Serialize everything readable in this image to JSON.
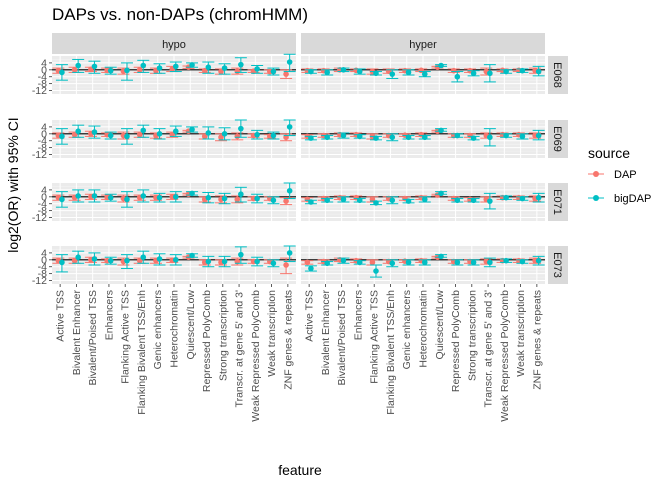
{
  "chart_data": {
    "type": "scatter",
    "title": "DAPs vs. non-DAPs (chromHMM)",
    "xlabel": "feature",
    "ylabel": "log2(OR) with 95% CI",
    "ylim": [
      -14,
      8
    ],
    "yticks": [
      4,
      0,
      -4,
      -8,
      -12
    ],
    "grid": true,
    "legend_position": "right",
    "legend_title": "source",
    "series": [
      {
        "name": "DAP",
        "color": "#F8766D"
      },
      {
        "name": "bigDAP",
        "color": "#00BFC4"
      }
    ],
    "columns": [
      "hypo",
      "hyper"
    ],
    "rows": [
      "E068",
      "E069",
      "E071",
      "E073"
    ],
    "features": [
      "Active TSS",
      "Bivalent Enhancer",
      "Bivalent/Poised TSS",
      "Enhancers",
      "Flanking Active TSS",
      "Flanking Bivalent TSS/Enh",
      "Genic enhancers",
      "Heterochromatin",
      "Quiescent/Low",
      "Repressed PolyComb",
      "Strong transcription",
      "Transcr. at gene 5' and 3'",
      "Weak Repressed PolyComb",
      "Weak transcription",
      "ZNF genes & repeats"
    ],
    "panels": [
      {
        "row": "E068",
        "col": "hypo",
        "DAP": [
          [
            -0.5,
            -2,
            1
          ],
          [
            0,
            -1.5,
            1.5
          ],
          [
            0.3,
            -1,
            1.5
          ],
          [
            -0.3,
            -1.5,
            1
          ],
          [
            -0.8,
            -2.5,
            1
          ],
          [
            0,
            -1.5,
            1.5
          ],
          [
            -0.5,
            -2,
            1
          ],
          [
            0.5,
            -1,
            2
          ],
          [
            1.5,
            0.8,
            2.2
          ],
          [
            -0.5,
            -1.5,
            0.5
          ],
          [
            -1,
            -2.5,
            0.5
          ],
          [
            -0.8,
            -2.5,
            1
          ],
          [
            -0.8,
            -1.5,
            0
          ],
          [
            -1,
            -2,
            0
          ],
          [
            -2.5,
            -5,
            0
          ]
        ],
        "bigDAP": [
          [
            -1.5,
            -6,
            3
          ],
          [
            2.5,
            -1.5,
            6
          ],
          [
            2,
            -2,
            5
          ],
          [
            -0.5,
            -2.5,
            1.5
          ],
          [
            -0.3,
            -6,
            4
          ],
          [
            2.5,
            -1.5,
            5.5
          ],
          [
            1,
            -2,
            3.5
          ],
          [
            2,
            -1,
            4.5
          ],
          [
            2.8,
            1.5,
            4
          ],
          [
            1.5,
            -2,
            4.5
          ],
          [
            1,
            -2.5,
            3.5
          ],
          [
            3,
            -1.5,
            7
          ],
          [
            0.5,
            -2,
            2.5
          ],
          [
            -1,
            -3,
            1
          ],
          [
            4.5,
            -1,
            9
          ]
        ]
      },
      {
        "row": "E068",
        "col": "hyper",
        "DAP": [
          [
            -0.5,
            -1.5,
            0.5
          ],
          [
            -0.5,
            -1.5,
            0.5
          ],
          [
            0,
            -1,
            1
          ],
          [
            -0.3,
            -1,
            0.5
          ],
          [
            -1,
            -2.5,
            0.5
          ],
          [
            -0.8,
            -2,
            0.5
          ],
          [
            -0.5,
            -1.5,
            0.5
          ],
          [
            -0.3,
            -1,
            0.5
          ],
          [
            1.5,
            1,
            2
          ],
          [
            -0.5,
            -1.5,
            0.5
          ],
          [
            -0.5,
            -1.5,
            0.5
          ],
          [
            -1,
            -3,
            1
          ],
          [
            -0.3,
            -1,
            0.5
          ],
          [
            -0.3,
            -1,
            0.5
          ],
          [
            -0.5,
            -2,
            1
          ]
        ],
        "bigDAP": [
          [
            -1,
            -2,
            0
          ],
          [
            -1.5,
            -3,
            0
          ],
          [
            0,
            -1,
            1
          ],
          [
            -1,
            -2.5,
            0.5
          ],
          [
            -2,
            -3,
            -1
          ],
          [
            -2.5,
            -5,
            0
          ],
          [
            -1.5,
            -3,
            0
          ],
          [
            -2.5,
            -4,
            -1
          ],
          [
            2.5,
            2,
            3
          ],
          [
            -4,
            -7,
            -1
          ],
          [
            -2,
            -3.5,
            -0.5
          ],
          [
            -2,
            -7,
            3
          ],
          [
            -1,
            -2,
            0
          ],
          [
            -0.5,
            -1.5,
            0.5
          ],
          [
            -1,
            -3.5,
            2
          ]
        ]
      },
      {
        "row": "E069",
        "col": "hypo",
        "DAP": [
          [
            -1,
            -2.5,
            0.5
          ],
          [
            -0.5,
            -2,
            1
          ],
          [
            0,
            -1.5,
            1.5
          ],
          [
            -0.5,
            -1.5,
            0.5
          ],
          [
            -1,
            -3,
            1
          ],
          [
            -0.5,
            -2,
            1
          ],
          [
            -1,
            -2.5,
            0.5
          ],
          [
            -0.5,
            -2,
            1
          ],
          [
            1.5,
            1,
            2
          ],
          [
            -1.5,
            -3,
            0
          ],
          [
            -2,
            -4,
            0
          ],
          [
            -1.5,
            -3.5,
            0.5
          ],
          [
            -1,
            -2,
            0
          ],
          [
            -1.5,
            -2.5,
            -0.5
          ],
          [
            -2,
            -4,
            0
          ]
        ],
        "bigDAP": [
          [
            -1.5,
            -6,
            3
          ],
          [
            1.5,
            -2,
            5
          ],
          [
            1,
            -2.5,
            4.5
          ],
          [
            -1,
            -3,
            1
          ],
          [
            -1.5,
            -6,
            3
          ],
          [
            2,
            -2,
            5
          ],
          [
            0,
            -3,
            3
          ],
          [
            1.5,
            -1.5,
            4.5
          ],
          [
            2.5,
            1,
            4
          ],
          [
            0.5,
            -3,
            4
          ],
          [
            0,
            -3.5,
            3.5
          ],
          [
            3,
            -2,
            8
          ],
          [
            -0.5,
            -3,
            2
          ],
          [
            -1,
            -3,
            1
          ],
          [
            4,
            -1,
            8
          ]
        ]
      },
      {
        "row": "E069",
        "col": "hyper",
        "DAP": [
          [
            -1.5,
            -2.5,
            -0.5
          ],
          [
            -1,
            -2,
            0
          ],
          [
            -0.5,
            -1.5,
            0.5
          ],
          [
            -0.5,
            -1.5,
            0.5
          ],
          [
            -1.5,
            -3,
            0
          ],
          [
            -1,
            -2,
            0
          ],
          [
            -0.8,
            -1.5,
            0
          ],
          [
            -0.5,
            -1.5,
            0.5
          ],
          [
            1.5,
            1,
            2
          ],
          [
            -1,
            -2,
            0
          ],
          [
            -1,
            -2,
            0
          ],
          [
            -1,
            -2.5,
            0.5
          ],
          [
            -0.5,
            -1.5,
            0.5
          ],
          [
            -0.5,
            -1.5,
            0.5
          ],
          [
            -1,
            -2.5,
            0.5
          ]
        ],
        "bigDAP": [
          [
            -2.5,
            -3.5,
            -1.5
          ],
          [
            -2,
            -3,
            -1
          ],
          [
            -1,
            -2.5,
            0.5
          ],
          [
            -1.5,
            -2.5,
            -0.5
          ],
          [
            -2.5,
            -3.5,
            -1.5
          ],
          [
            -2,
            -4,
            0
          ],
          [
            -2,
            -3,
            -1
          ],
          [
            -2,
            -3,
            -1
          ],
          [
            2,
            1.5,
            3
          ],
          [
            -1,
            -2,
            0
          ],
          [
            -2.5,
            -3.5,
            -1.5
          ],
          [
            -2,
            -7,
            3
          ],
          [
            -1,
            -2,
            0
          ],
          [
            -1.5,
            -3,
            0
          ],
          [
            -1,
            -3.5,
            2
          ]
        ]
      },
      {
        "row": "E071",
        "col": "hypo",
        "DAP": [
          [
            -0.5,
            -2,
            1
          ],
          [
            -0.5,
            -2,
            1
          ],
          [
            0,
            -1.5,
            1.5
          ],
          [
            -0.3,
            -1.5,
            1
          ],
          [
            -1,
            -3,
            1
          ],
          [
            -0.5,
            -2,
            1
          ],
          [
            -0.5,
            -2,
            1
          ],
          [
            0,
            -1.5,
            1.5
          ],
          [
            1.5,
            1,
            2
          ],
          [
            -1.5,
            -3,
            0
          ],
          [
            -1.5,
            -3.5,
            0.5
          ],
          [
            -1.5,
            -3.5,
            0.5
          ],
          [
            -1,
            -2,
            0
          ],
          [
            -1,
            -2,
            0
          ],
          [
            -2.5,
            -4.5,
            -0.5
          ]
        ],
        "bigDAP": [
          [
            -1.5,
            -6,
            3
          ],
          [
            0.5,
            -3,
            4
          ],
          [
            0.5,
            -3,
            4
          ],
          [
            -0.5,
            -2.5,
            1.5
          ],
          [
            -1.5,
            -6,
            3
          ],
          [
            0.5,
            -3,
            4
          ],
          [
            -0.5,
            -3,
            2
          ],
          [
            0,
            -3,
            3
          ],
          [
            2,
            1,
            3
          ],
          [
            -0.5,
            -3.5,
            2.5
          ],
          [
            -1,
            -4,
            2
          ],
          [
            1.5,
            -3,
            5.5
          ],
          [
            -1,
            -3.5,
            1.5
          ],
          [
            -2,
            -4,
            0
          ],
          [
            3.5,
            -1,
            8
          ]
        ]
      },
      {
        "row": "E071",
        "col": "hyper",
        "DAP": [
          [
            -1.5,
            -2.5,
            -0.5
          ],
          [
            -1,
            -2,
            0
          ],
          [
            -0.5,
            -1.5,
            0.5
          ],
          [
            -0.5,
            -1.5,
            0.5
          ],
          [
            -1.5,
            -3,
            0
          ],
          [
            -1,
            -2,
            0
          ],
          [
            -1,
            -2,
            0
          ],
          [
            -0.5,
            -1.5,
            0.5
          ],
          [
            1,
            0.5,
            1.5
          ],
          [
            -1,
            -2,
            0
          ],
          [
            -1.5,
            -2.5,
            -0.5
          ],
          [
            -1.5,
            -3,
            0
          ],
          [
            -0.5,
            -1.5,
            0.5
          ],
          [
            -0.5,
            -1.5,
            0.5
          ],
          [
            -1,
            -2.5,
            0.5
          ]
        ],
        "bigDAP": [
          [
            -3,
            -4,
            -2
          ],
          [
            -2,
            -3,
            -1
          ],
          [
            -1.5,
            -3,
            0
          ],
          [
            -2,
            -3,
            -1
          ],
          [
            -3.5,
            -4.5,
            -2.5
          ],
          [
            -2,
            -4,
            0
          ],
          [
            -2.5,
            -3.5,
            -1.5
          ],
          [
            -1.5,
            -3,
            0
          ],
          [
            2,
            1.5,
            3
          ],
          [
            -2,
            -3,
            -1
          ],
          [
            -2,
            -3,
            -1
          ],
          [
            -2.5,
            -7,
            2
          ],
          [
            -0.5,
            -1.5,
            0.5
          ],
          [
            -1,
            -2,
            0
          ],
          [
            -0.5,
            -3,
            2
          ]
        ]
      },
      {
        "row": "E073",
        "col": "hypo",
        "DAP": [
          [
            -0.5,
            -2,
            1
          ],
          [
            -0.5,
            -2,
            1
          ],
          [
            0,
            -1.5,
            1.5
          ],
          [
            -0.5,
            -1.5,
            0.5
          ],
          [
            -1,
            -3,
            1
          ],
          [
            -0.5,
            -2,
            1
          ],
          [
            -0.5,
            -2,
            1
          ],
          [
            -0.3,
            -1.5,
            1
          ],
          [
            1.5,
            1,
            2
          ],
          [
            -1.5,
            -3,
            0
          ],
          [
            -1.5,
            -3,
            0
          ],
          [
            -1,
            -3,
            1
          ],
          [
            -1,
            -2,
            0
          ],
          [
            -1,
            -2,
            0
          ],
          [
            -3,
            -8,
            1
          ]
        ],
        "bigDAP": [
          [
            -1.5,
            -7,
            3
          ],
          [
            1.5,
            -2,
            5
          ],
          [
            0.5,
            -3,
            4
          ],
          [
            -0.5,
            -2.5,
            1.5
          ],
          [
            -0.5,
            -5,
            3
          ],
          [
            1.5,
            -2,
            5
          ],
          [
            0.5,
            -3,
            3.5
          ],
          [
            0,
            -3,
            3
          ],
          [
            2.5,
            1.5,
            3.5
          ],
          [
            -1,
            -4,
            2
          ],
          [
            -1,
            -4,
            2
          ],
          [
            3,
            -2,
            7.5
          ],
          [
            -1,
            -3.5,
            1.5
          ],
          [
            -2,
            -4,
            0
          ],
          [
            4,
            -1,
            8
          ]
        ]
      },
      {
        "row": "E073",
        "col": "hyper",
        "DAP": [
          [
            -1.5,
            -2.5,
            -0.5
          ],
          [
            -1,
            -2,
            0
          ],
          [
            0,
            -1,
            1
          ],
          [
            -0.5,
            -1.5,
            0.5
          ],
          [
            -1.5,
            -3,
            0
          ],
          [
            -1,
            -2,
            0
          ],
          [
            -0.8,
            -1.5,
            0
          ],
          [
            -0.5,
            -1.5,
            0.5
          ],
          [
            1.5,
            1,
            2
          ],
          [
            -1,
            -2,
            0
          ],
          [
            -1,
            -2,
            0
          ],
          [
            -1,
            -2.5,
            0.5
          ],
          [
            -0.5,
            -1.5,
            0.5
          ],
          [
            -0.5,
            -1.5,
            0.5
          ],
          [
            -0.5,
            -2,
            1
          ]
        ],
        "bigDAP": [
          [
            -5,
            -6.5,
            -3.5
          ],
          [
            -2,
            -3,
            -1
          ],
          [
            -0.5,
            -2,
            1
          ],
          [
            -1.5,
            -2.5,
            -0.5
          ],
          [
            -6.5,
            -10,
            -3
          ],
          [
            -2,
            -4,
            0
          ],
          [
            -1.5,
            -3,
            0
          ],
          [
            -1.5,
            -3,
            0
          ],
          [
            2,
            1.5,
            3
          ],
          [
            -1.5,
            -3,
            0
          ],
          [
            -1.5,
            -3,
            0
          ],
          [
            -1.5,
            -4,
            1
          ],
          [
            -0.5,
            -1.5,
            0.5
          ],
          [
            -1,
            -2,
            0
          ],
          [
            -0.5,
            -3,
            2
          ]
        ]
      }
    ]
  }
}
